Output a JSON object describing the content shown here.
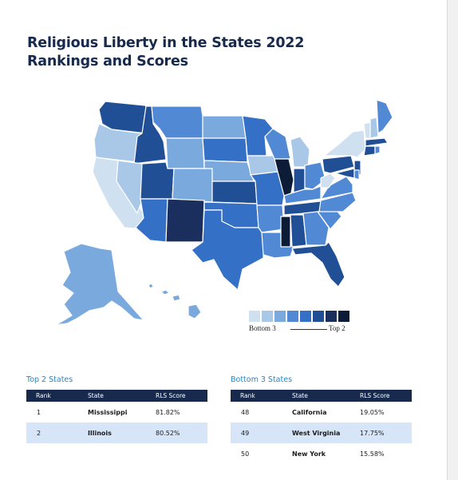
{
  "title": {
    "line1": "Religious Liberty in the States 2022",
    "line2": "Rankings and Scores"
  },
  "colors": {
    "c1": "#cfe0f1",
    "c2": "#a9c8e8",
    "c3": "#7aa9dd",
    "c4": "#5289d4",
    "c5": "#3470c6",
    "c6": "#214f96",
    "c7": "#1a2f5e",
    "c8": "#0d1c36",
    "header_bg": "#172a4e",
    "row_alt": "#d6e5f7",
    "accent": "#2a84c4"
  },
  "legend": {
    "swatches": [
      "#cfe0f1",
      "#a9c8e8",
      "#7aa9dd",
      "#5289d4",
      "#3470c6",
      "#214f96",
      "#1a2f5e",
      "#0d1c36"
    ],
    "low_label": "Bottom 3",
    "high_label": "Top 2"
  },
  "top_table": {
    "title": "Top 2 States",
    "headers": {
      "rank": "Rank",
      "state": "State",
      "score": "RLS Score"
    },
    "rows": [
      {
        "rank": "1",
        "state": "Mississippi",
        "score": "81.82%"
      },
      {
        "rank": "2",
        "state": "Illinois",
        "score": "80.52%"
      }
    ]
  },
  "bottom_table": {
    "title": "Bottom 3 States",
    "headers": {
      "rank": "Rank",
      "state": "State",
      "score": "RLS Score"
    },
    "rows": [
      {
        "rank": "48",
        "state": "California",
        "score": "19.05%"
      },
      {
        "rank": "49",
        "state": "West Virginia",
        "score": "17.75%"
      },
      {
        "rank": "50",
        "state": "New York",
        "score": "15.58%"
      }
    ]
  }
}
